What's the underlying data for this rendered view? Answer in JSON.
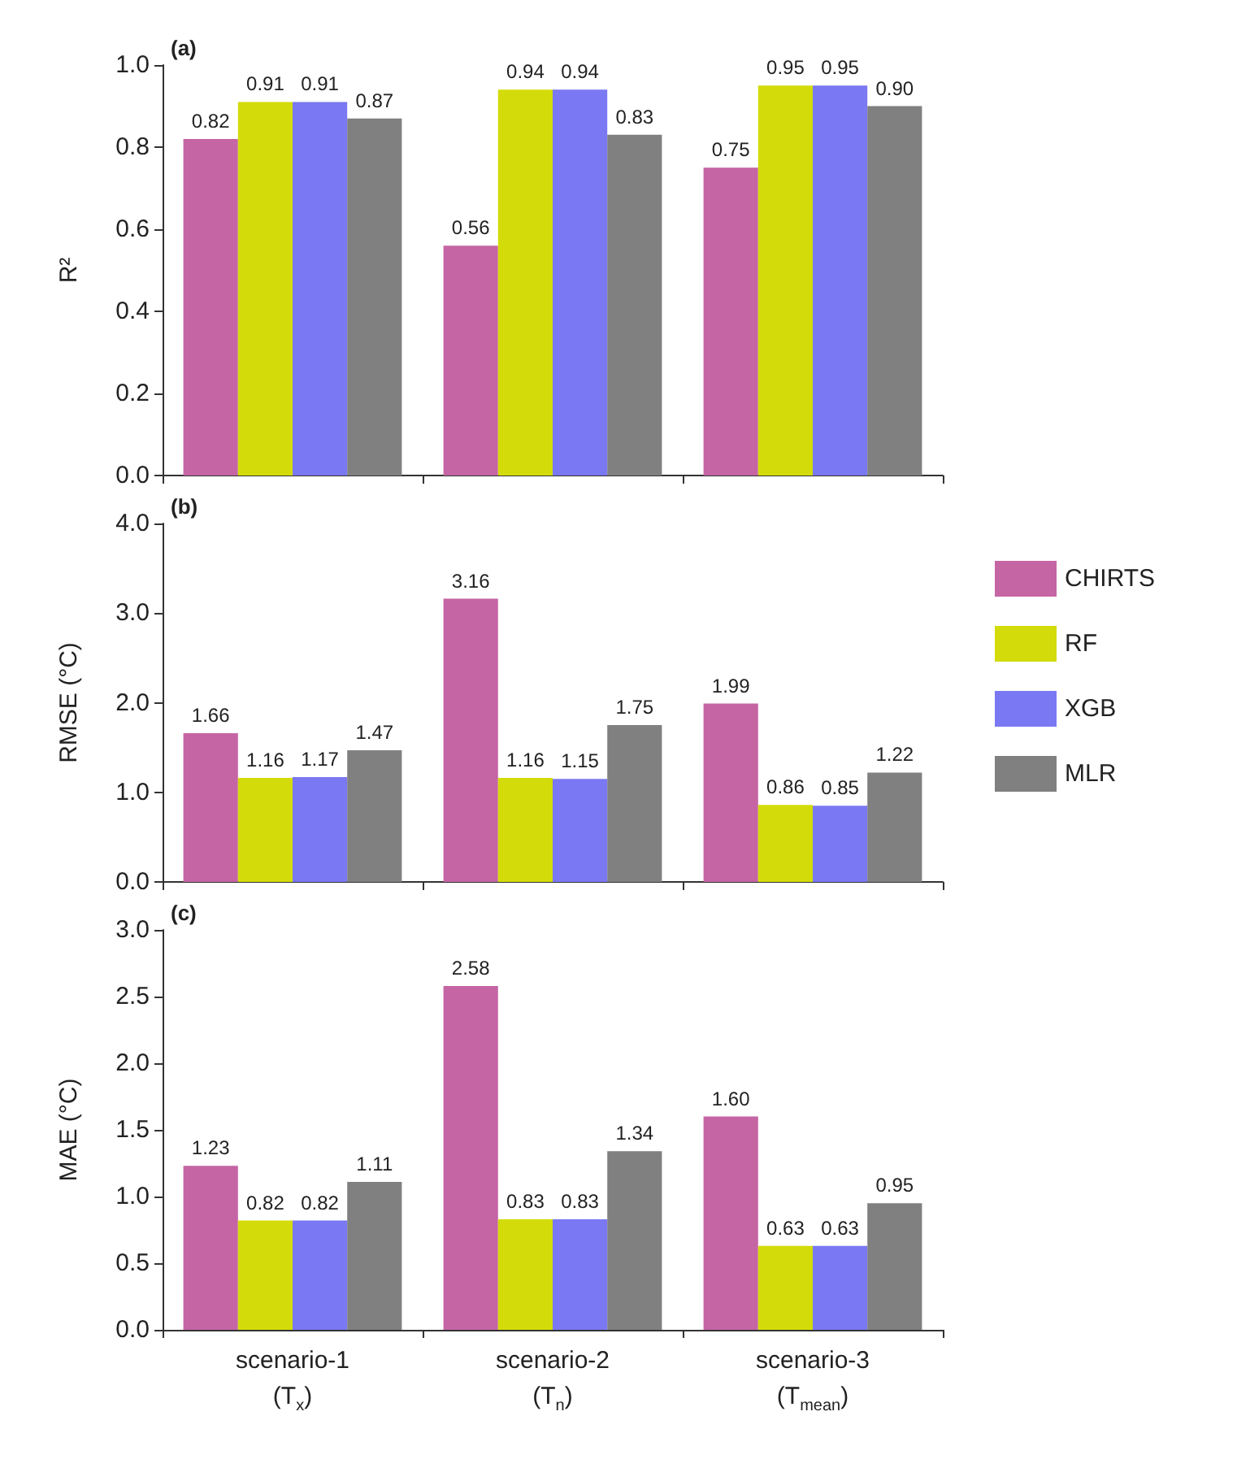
{
  "chart_data": [
    {
      "type": "bar",
      "title": "(a)",
      "ylabel": "R²",
      "categories": [
        null,
        null,
        null
      ],
      "tick_labels": "y",
      "grid": false,
      "legend": false,
      "ylim": [
        0,
        1
      ],
      "yticks": [
        {
          "value": 0,
          "label": "0.0"
        },
        {
          "value": 0.2,
          "label": "0.2"
        },
        {
          "value": 0.4,
          "label": "0.4"
        },
        {
          "value": 0.6,
          "label": "0.6"
        },
        {
          "value": 0.8,
          "label": "0.8"
        },
        {
          "value": 1,
          "label": "1.0"
        }
      ],
      "series": [
        {
          "color": "#c565a4",
          "values": [
            0.82,
            0.56,
            0.75
          ],
          "value_labels": [
            "0.82",
            "0.56",
            "0.75"
          ]
        },
        {
          "color": "#d3dc0a",
          "values": [
            0.91,
            0.94,
            0.95
          ],
          "value_labels": [
            "0.91",
            "0.94",
            "0.95"
          ]
        },
        {
          "color": "#7a78f2",
          "values": [
            0.91,
            0.94,
            0.95
          ],
          "value_labels": [
            "0.91",
            "0.94",
            "0.95"
          ]
        },
        {
          "color": "#808080",
          "values": [
            0.87,
            0.83,
            0.9
          ],
          "value_labels": [
            "0.87",
            "0.83",
            "0.90"
          ]
        }
      ]
    },
    {
      "type": "bar",
      "title": "(b)",
      "ylabel": "RMSE (°C)",
      "categories": [
        null,
        null,
        null
      ],
      "tick_labels": "y",
      "grid": false,
      "legend": "right",
      "ylim": [
        0,
        4
      ],
      "yticks": [
        {
          "value": 0,
          "label": "0.0"
        },
        {
          "value": 1,
          "label": "1.0"
        },
        {
          "value": 2,
          "label": "2.0"
        },
        {
          "value": 3,
          "label": "3.0"
        },
        {
          "value": 4,
          "label": "4.0"
        }
      ],
      "series": [
        {
          "name": "CHIRTS",
          "color": "#c565a4",
          "values": [
            1.66,
            3.16,
            1.99
          ],
          "value_labels": [
            "1.66",
            "3.16",
            "1.99"
          ]
        },
        {
          "name": "RF",
          "color": "#d3dc0a",
          "values": [
            1.16,
            1.16,
            0.86
          ],
          "value_labels": [
            "1.16",
            "1.16",
            "0.86"
          ]
        },
        {
          "name": "XGB",
          "color": "#7a78f2",
          "values": [
            1.17,
            1.15,
            0.85
          ],
          "value_labels": [
            "1.17",
            "1.15",
            "0.85"
          ]
        },
        {
          "name": "MLR",
          "color": "#808080",
          "values": [
            1.47,
            1.75,
            1.22
          ],
          "value_labels": [
            "1.47",
            "1.75",
            "1.22"
          ]
        }
      ]
    },
    {
      "type": "bar",
      "title": "(c)",
      "ylabel": "MAE (°C)",
      "categories": [
        "scenario-1\n(T$_{x}$)",
        "scenario-2\n(T$_{n}$)",
        "scenario-3\n(T$_{mean}$)"
      ],
      "grid": false,
      "legend": false,
      "ylim": [
        0,
        3
      ],
      "yticks": [
        {
          "value": 0,
          "label": "0.0"
        },
        {
          "value": 0.5,
          "label": "0.5"
        },
        {
          "value": 1,
          "label": "1.0"
        },
        {
          "value": 1.5,
          "label": "1.5"
        },
        {
          "value": 2,
          "label": "2.0"
        },
        {
          "value": 2.5,
          "label": "2.5"
        },
        {
          "value": 3,
          "label": "3.0"
        }
      ],
      "series": [
        {
          "color": "#c565a4",
          "values": [
            1.23,
            2.58,
            1.6
          ],
          "value_labels": [
            "1.23",
            "2.58",
            "1.60"
          ]
        },
        {
          "color": "#d3dc0a",
          "values": [
            0.82,
            0.83,
            0.63
          ],
          "value_labels": [
            "0.82",
            "0.83",
            "0.63"
          ]
        },
        {
          "color": "#7a78f2",
          "values": [
            0.82,
            0.83,
            0.63
          ],
          "value_labels": [
            "0.82",
            "0.83",
            "0.63"
          ]
        },
        {
          "color": "#808080",
          "values": [
            1.11,
            1.34,
            0.95
          ],
          "value_labels": [
            "1.11",
            "1.34",
            "0.95"
          ]
        }
      ]
    }
  ]
}
